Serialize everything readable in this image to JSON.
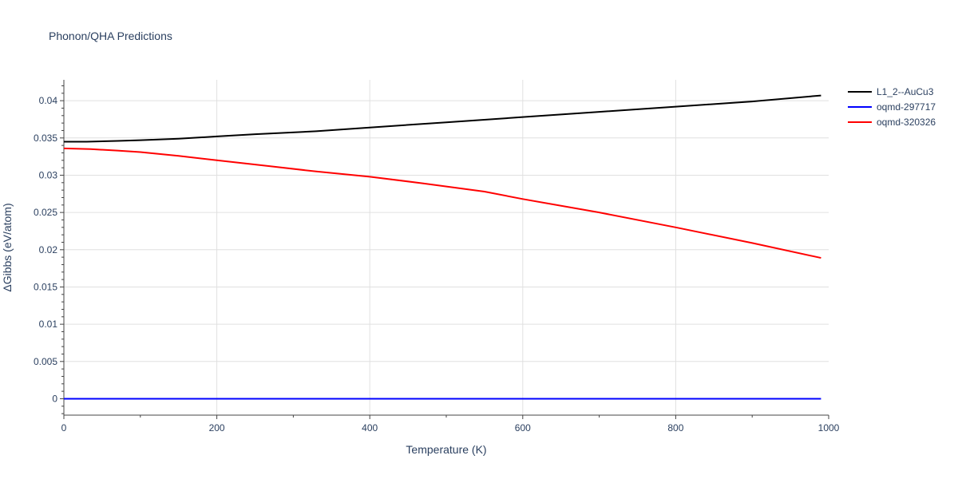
{
  "chart_data": {
    "type": "line",
    "title": "Phonon/QHA Predictions",
    "xlabel": "Temperature (K)",
    "ylabel": "ΔGibbs (eV/atom)",
    "xlim": [
      0,
      1000
    ],
    "ylim": [
      -0.0022,
      0.0428
    ],
    "xticks": [
      0,
      200,
      400,
      600,
      800,
      1000
    ],
    "xtick_labels": [
      "0",
      "200",
      "400",
      "600",
      "800",
      "1000"
    ],
    "yticks": [
      0,
      0.005,
      0.01,
      0.015,
      0.02,
      0.025,
      0.03,
      0.035,
      0.04
    ],
    "ytick_labels": [
      "0",
      "0.005",
      "0.01",
      "0.015",
      "0.02",
      "0.025",
      "0.03",
      "0.035",
      "0.04"
    ],
    "grid": true,
    "legend_position": "top-right",
    "series": [
      {
        "name": "L1_2--AuCu3",
        "color": "#000000",
        "x": [
          0,
          30,
          70,
          100,
          150,
          200,
          250,
          330,
          400,
          500,
          600,
          700,
          800,
          900,
          990
        ],
        "y": [
          0.0345,
          0.0345,
          0.0346,
          0.0347,
          0.0349,
          0.0352,
          0.0355,
          0.0359,
          0.0364,
          0.0371,
          0.0378,
          0.0385,
          0.0392,
          0.0399,
          0.0407
        ]
      },
      {
        "name": "oqmd-297717",
        "color": "#0000ff",
        "x": [
          0,
          990
        ],
        "y": [
          0,
          0
        ]
      },
      {
        "name": "oqmd-320326",
        "color": "#ff0000",
        "x": [
          0,
          35,
          70,
          100,
          150,
          200,
          270,
          330,
          400,
          470,
          550,
          600,
          700,
          800,
          900,
          990
        ],
        "y": [
          0.0336,
          0.0335,
          0.0333,
          0.0331,
          0.0326,
          0.032,
          0.0312,
          0.0305,
          0.0298,
          0.0289,
          0.0278,
          0.0268,
          0.025,
          0.023,
          0.0209,
          0.0189
        ]
      }
    ]
  }
}
